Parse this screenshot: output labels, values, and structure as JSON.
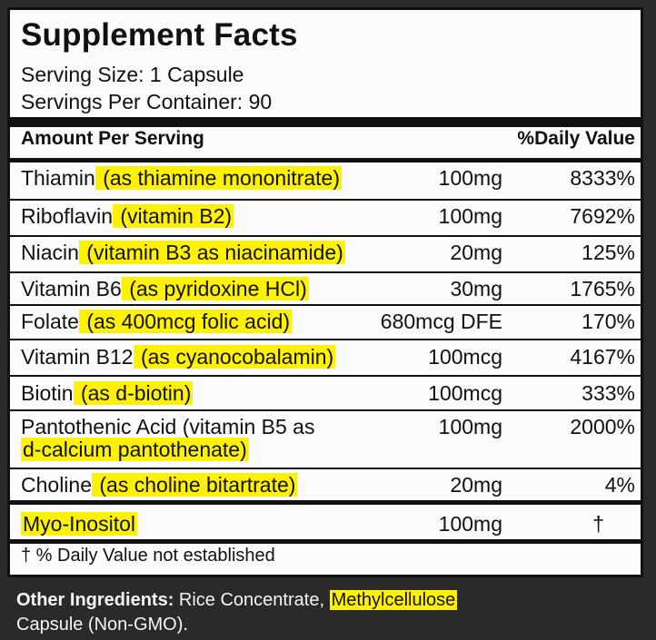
{
  "panel": {
    "title": "Supplement Facts",
    "serving_size": "Serving Size: 1 Capsule",
    "servings_per_container": "Servings Per Container: 90",
    "header_amount": "Amount Per Serving",
    "header_dv": "%Daily Value"
  },
  "rows": [
    {
      "name": "Thiamin",
      "detail": " (as thiamine mononitrate)",
      "amount": "100mg",
      "dv": "8333%"
    },
    {
      "name": "Riboflavin",
      "detail": " (vitamin B2)",
      "amount": "100mg",
      "dv": "7692%"
    },
    {
      "name": "Niacin",
      "detail": " (vitamin B3 as niacinamide)",
      "amount": "20mg",
      "dv": "125%"
    },
    {
      "name": "Vitamin B6",
      "detail": " (as pyridoxine HCl)",
      "amount": "30mg",
      "dv": "1765%"
    },
    {
      "name": "Folate",
      "detail": " (as 400mcg folic acid)",
      "amount": "680mcg DFE",
      "dv": "170%"
    },
    {
      "name": "Vitamin B12",
      "detail": " (as cyanocobalamin)",
      "amount": "100mcg",
      "dv": "4167%"
    },
    {
      "name": "Biotin",
      "detail": " (as d-biotin)",
      "amount": "100mcg",
      "dv": "333%"
    },
    {
      "name": "Pantothenic Acid",
      "detail": " (vitamin B5 as",
      "detail2": "d-calcium pantothenate)",
      "amount": "100mg",
      "dv": "2000%"
    },
    {
      "name": "Choline",
      "detail": " (as choline bitartrate)",
      "amount": "20mg",
      "dv": "4%"
    },
    {
      "name": "Myo-Inositol",
      "detail": "",
      "amount": "100mg",
      "dv": "†"
    }
  ],
  "footnote": "† % Daily Value not established",
  "other_ingredients": {
    "label": "Other Ingredients:",
    "text_before": " Rice Concentrate, ",
    "highlighted": "Methylcellulose",
    "line2": "Capsule (Non-GMO)."
  },
  "colors": {
    "highlight": "#fff200",
    "panel_bg": "#fbfbfb",
    "border": "#111111"
  }
}
